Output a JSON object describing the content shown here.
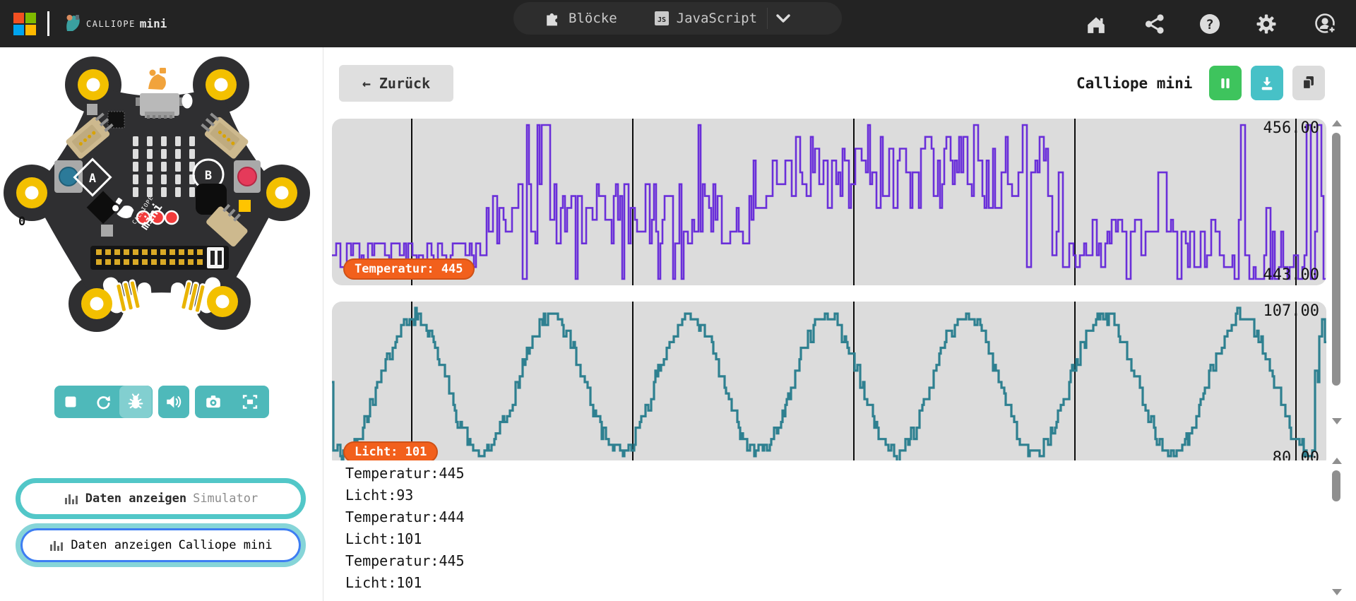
{
  "topbar": {
    "brand_calliope": "CALLIOPE",
    "brand_mini": "mini",
    "tab_blocks": "Blöcke",
    "tab_js": "JavaScript",
    "js_badge": "JS",
    "help_glyph": "?"
  },
  "board": {
    "button_a": "A",
    "button_b": "B",
    "pin_label": "0",
    "logo_calliope": "CALLIOPE",
    "logo_mini": "mini"
  },
  "panel_buttons": [
    {
      "bold": "Daten anzeigen",
      "suffix": "Simulator"
    },
    {
      "bold": "Daten anzeigen",
      "suffix": "Calliope mini"
    }
  ],
  "serial": {
    "back_arrow": "←",
    "back": "Zurück",
    "title": "Calliope mini",
    "console": [
      "Temperatur:445",
      "Licht:93",
      "Temperatur:444",
      "Licht:101",
      "Temperatur:445",
      "Licht:101"
    ]
  },
  "chart_data": [
    {
      "type": "line",
      "name": "Temperatur",
      "badge": "Temperatur: 445",
      "current": 445,
      "max_label": "456.00",
      "min_label": "443.00",
      "ylim": [
        443,
        456
      ],
      "color": "#6a2fd9",
      "desc": "noisy stepped temperature trace: ~445 at start, oscillating plateau 448-456 in the middle, declining to 443-446 at the right edge",
      "gen": {
        "kind": "plateau",
        "seed": 7,
        "step": 3,
        "segments": [
          {
            "until": 0.15,
            "base": 445.2,
            "jitter": 1.3,
            "spike_p": 0.04
          },
          {
            "until": 0.42,
            "base": 448.5,
            "jitter": 3.0,
            "spike_p": 0.07
          },
          {
            "until": 0.72,
            "base": 452.0,
            "jitter": 3.2,
            "spike_p": 0.09
          },
          {
            "until": 0.9,
            "base": 446.0,
            "jitter": 2.2,
            "spike_p": 0.06
          },
          {
            "until": 1.0,
            "base": 446.0,
            "jitter": 4.0,
            "spike_p": 0.2
          }
        ]
      }
    },
    {
      "type": "line",
      "name": "Licht",
      "badge": "Licht: 101",
      "current": 101,
      "max_label": "107.00",
      "min_label": "80.00",
      "ylim": [
        80,
        107
      ],
      "color": "#2e8090",
      "desc": "sine-like light level oscillating between ~80 and ~107, about 7 cycles, chaotic spikes at the right edge",
      "gen": {
        "kind": "sine",
        "seed": 11,
        "step": 2,
        "cycles": 7.2,
        "phase": -2.0,
        "base": 93.5,
        "amp": 12,
        "noise": 1.3,
        "tail_chaos": 0.985
      }
    }
  ],
  "colors": {
    "topbar_bg": "#232323",
    "accent_teal": "#4eb9ba",
    "pause_green": "#3ec45d",
    "download_teal": "#47c1c7",
    "badge_orange": "#f2601c",
    "chart_bg": "#dcdcdc",
    "temperatur_purple": "#6a2fd9",
    "licht_teal": "#2e8090",
    "focus_blue": "#3d7ef2",
    "ms_red": "#f25022",
    "ms_green": "#7fba00",
    "ms_blue": "#00a4ef",
    "ms_yellow": "#ffb900"
  }
}
